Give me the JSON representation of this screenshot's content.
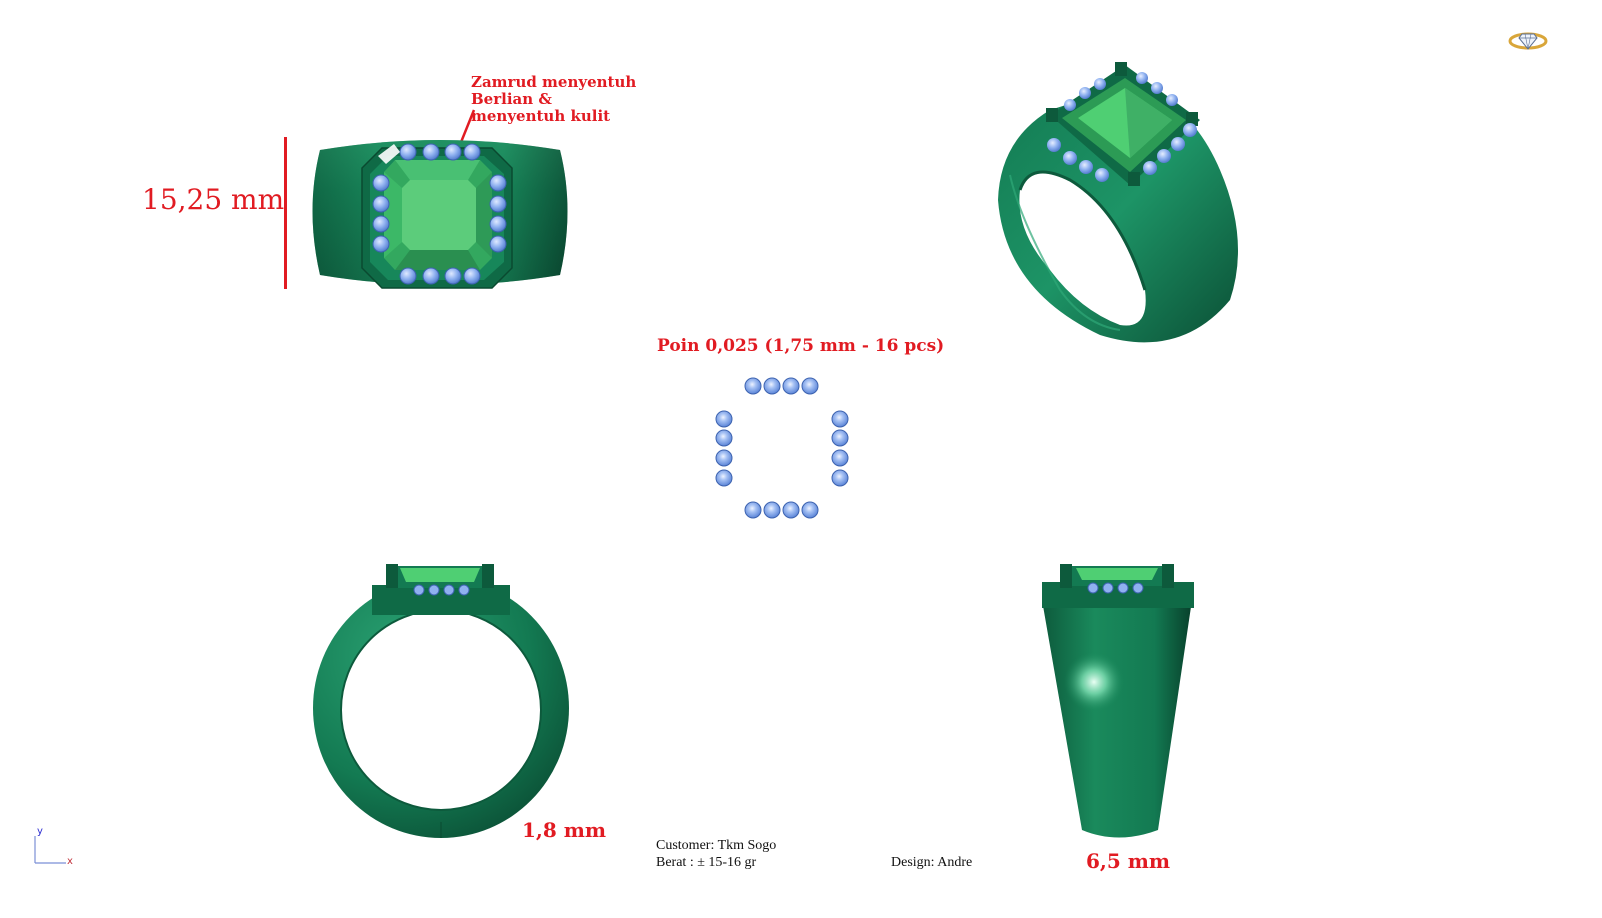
{
  "colors": {
    "band_dark": "#0b4f35",
    "band_mid": "#137a52",
    "band_light": "#2fa877",
    "emerald": "#4fcf73",
    "emerald_dark": "#2c9b55",
    "stone_blue": "#7fa6ea",
    "stone_blue_dark": "#4a74c9",
    "annotation_red": "#e11b22"
  },
  "annotations": {
    "top_note_line1": "Zamrud menyentuh Berlian &",
    "top_note_line2": "menyentuh kulit",
    "height_dimension": "15,25 mm",
    "stone_spec": "Poin 0,025 (1,75 mm - 16 pcs)",
    "band_thickness": "1,8 mm",
    "band_width": "6,5 mm"
  },
  "info": {
    "customer": "Customer: Tkm Sogo",
    "weight": "Berat : ± 15-16 gr",
    "designer": "Design: Andre"
  },
  "axis": {
    "y_label": "y",
    "x_label": "x"
  },
  "icons": {
    "logo": "diamond-ring-logo-icon"
  },
  "views": [
    "top-view",
    "perspective-view",
    "stone-layout-view",
    "front-view",
    "side-view"
  ]
}
